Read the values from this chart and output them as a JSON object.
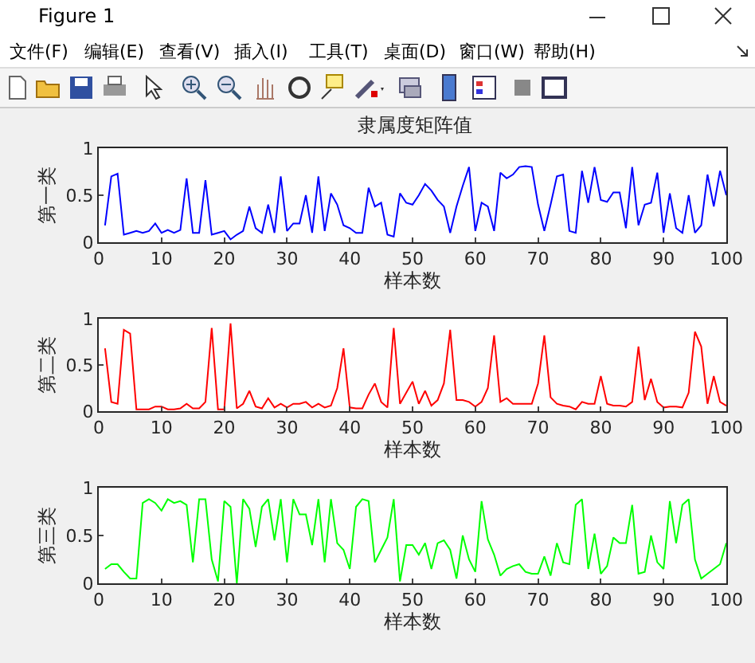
{
  "chart_data": [
    {
      "type": "line",
      "title": "隶属度矩阵值",
      "xlabel": "样本数",
      "ylabel": "第一类",
      "annotations": [
        "Figure 1",
        "文件(F)",
        "编辑(E)",
        "查看(V)",
        "插入(I)",
        "工具(T)",
        "桌面(D)",
        "窗口(W)",
        "帮助(H)"
      ],
      "x": [
        1,
        2,
        3,
        4,
        5,
        6,
        7,
        8,
        9,
        10,
        11,
        12,
        13,
        14,
        15,
        16,
        17,
        18,
        19,
        20,
        21,
        22,
        23,
        24,
        25,
        26,
        27,
        28,
        29,
        30,
        31,
        32,
        33,
        34,
        35,
        36,
        37,
        38,
        39,
        40,
        41,
        42,
        43,
        44,
        45,
        46,
        47,
        48,
        49,
        50,
        51,
        52,
        53,
        54,
        55,
        56,
        57,
        58,
        59,
        60,
        61,
        62,
        63,
        64,
        65,
        66,
        67,
        68,
        69,
        70,
        71,
        72,
        73,
        74,
        75,
        76,
        77,
        78,
        79,
        80,
        81,
        82,
        83,
        84,
        85,
        86,
        87,
        88,
        89,
        90,
        91,
        92,
        93,
        94,
        95,
        96,
        97,
        98,
        99,
        100
      ],
      "series": [
        {
          "color": "#0000ff",
          "values": [
            0.18,
            0.7,
            0.73,
            0.08,
            0.1,
            0.12,
            0.1,
            0.12,
            0.2,
            0.1,
            0.13,
            0.1,
            0.13,
            0.68,
            0.1,
            0.1,
            0.66,
            0.08,
            0.1,
            0.12,
            0.03,
            0.08,
            0.12,
            0.38,
            0.15,
            0.1,
            0.4,
            0.1,
            0.7,
            0.12,
            0.2,
            0.2,
            0.5,
            0.1,
            0.7,
            0.12,
            0.52,
            0.4,
            0.18,
            0.15,
            0.1,
            0.1,
            0.58,
            0.38,
            0.42,
            0.08,
            0.06,
            0.52,
            0.42,
            0.4,
            0.5,
            0.62,
            0.55,
            0.45,
            0.38,
            0.1,
            0.38,
            0.6,
            0.8,
            0.12,
            0.42,
            0.38,
            0.12,
            0.74,
            0.68,
            0.72,
            0.8,
            0.81,
            0.8,
            0.4,
            0.12,
            0.4,
            0.7,
            0.72,
            0.12,
            0.1,
            0.76,
            0.42,
            0.8,
            0.45,
            0.43,
            0.53,
            0.53,
            0.15,
            0.8,
            0.18,
            0.4,
            0.42,
            0.74,
            0.1,
            0.52,
            0.15,
            0.1,
            0.5,
            0.1,
            0.18,
            0.72,
            0.38,
            0.76,
            0.5
          ]
        }
      ],
      "xlim": [
        0,
        100
      ],
      "xticks": [
        0,
        10,
        20,
        30,
        40,
        50,
        60,
        70,
        80,
        90,
        100
      ],
      "ylim": [
        0,
        1
      ],
      "yticks": [
        0,
        0.5,
        1
      ],
      "grid": false
    },
    {
      "type": "line",
      "xlabel": "样本数",
      "ylabel": "第二类",
      "x": [
        1,
        2,
        3,
        4,
        5,
        6,
        7,
        8,
        9,
        10,
        11,
        12,
        13,
        14,
        15,
        16,
        17,
        18,
        19,
        20,
        21,
        22,
        23,
        24,
        25,
        26,
        27,
        28,
        29,
        30,
        31,
        32,
        33,
        34,
        35,
        36,
        37,
        38,
        39,
        40,
        41,
        42,
        43,
        44,
        45,
        46,
        47,
        48,
        49,
        50,
        51,
        52,
        53,
        54,
        55,
        56,
        57,
        58,
        59,
        60,
        61,
        62,
        63,
        64,
        65,
        66,
        67,
        68,
        69,
        70,
        71,
        72,
        73,
        74,
        75,
        76,
        77,
        78,
        79,
        80,
        81,
        82,
        83,
        84,
        85,
        86,
        87,
        88,
        89,
        90,
        91,
        92,
        93,
        94,
        95,
        96,
        97,
        98,
        99,
        100
      ],
      "series": [
        {
          "color": "#ff0000",
          "values": [
            0.68,
            0.1,
            0.08,
            0.88,
            0.84,
            0.02,
            0.02,
            0.02,
            0.05,
            0.05,
            0.02,
            0.02,
            0.03,
            0.08,
            0.03,
            0.03,
            0.1,
            0.9,
            0.02,
            0.02,
            0.95,
            0.03,
            0.08,
            0.22,
            0.05,
            0.03,
            0.14,
            0.04,
            0.08,
            0.04,
            0.08,
            0.08,
            0.1,
            0.04,
            0.08,
            0.04,
            0.06,
            0.25,
            0.68,
            0.04,
            0.03,
            0.03,
            0.18,
            0.3,
            0.1,
            0.04,
            0.9,
            0.08,
            0.2,
            0.32,
            0.08,
            0.22,
            0.06,
            0.12,
            0.3,
            0.88,
            0.12,
            0.12,
            0.1,
            0.05,
            0.1,
            0.25,
            0.82,
            0.1,
            0.14,
            0.08,
            0.08,
            0.08,
            0.08,
            0.3,
            0.82,
            0.15,
            0.08,
            0.06,
            0.05,
            0.02,
            0.1,
            0.08,
            0.08,
            0.38,
            0.08,
            0.06,
            0.06,
            0.05,
            0.1,
            0.7,
            0.12,
            0.35,
            0.1,
            0.04,
            0.05,
            0.05,
            0.04,
            0.2,
            0.86,
            0.7,
            0.08,
            0.38,
            0.1,
            0.06
          ]
        }
      ],
      "xlim": [
        0,
        100
      ],
      "xticks": [
        0,
        10,
        20,
        30,
        40,
        50,
        60,
        70,
        80,
        90,
        100
      ],
      "ylim": [
        0,
        1
      ],
      "yticks": [
        0,
        0.5,
        1
      ],
      "grid": false
    },
    {
      "type": "line",
      "xlabel": "样本数",
      "ylabel": "第三类",
      "x": [
        1,
        2,
        3,
        4,
        5,
        6,
        7,
        8,
        9,
        10,
        11,
        12,
        13,
        14,
        15,
        16,
        17,
        18,
        19,
        20,
        21,
        22,
        23,
        24,
        25,
        26,
        27,
        28,
        29,
        30,
        31,
        32,
        33,
        34,
        35,
        36,
        37,
        38,
        39,
        40,
        41,
        42,
        43,
        44,
        45,
        46,
        47,
        48,
        49,
        50,
        51,
        52,
        53,
        54,
        55,
        56,
        57,
        58,
        59,
        60,
        61,
        62,
        63,
        64,
        65,
        66,
        67,
        68,
        69,
        70,
        71,
        72,
        73,
        74,
        75,
        76,
        77,
        78,
        79,
        80,
        81,
        82,
        83,
        84,
        85,
        86,
        87,
        88,
        89,
        90,
        91,
        92,
        93,
        94,
        95,
        96,
        97,
        98,
        99,
        100
      ],
      "series": [
        {
          "color": "#00ff00",
          "values": [
            0.15,
            0.2,
            0.2,
            0.12,
            0.05,
            0.05,
            0.84,
            0.88,
            0.84,
            0.76,
            0.88,
            0.84,
            0.86,
            0.82,
            0.22,
            0.88,
            0.88,
            0.25,
            0.02,
            0.86,
            0.8,
            0.0,
            0.88,
            0.78,
            0.38,
            0.8,
            0.88,
            0.45,
            0.88,
            0.22,
            0.88,
            0.72,
            0.72,
            0.4,
            0.88,
            0.22,
            0.88,
            0.42,
            0.35,
            0.15,
            0.8,
            0.88,
            0.86,
            0.22,
            0.35,
            0.48,
            0.88,
            0.02,
            0.4,
            0.4,
            0.3,
            0.42,
            0.15,
            0.42,
            0.45,
            0.35,
            0.05,
            0.5,
            0.25,
            0.12,
            0.86,
            0.46,
            0.3,
            0.08,
            0.15,
            0.18,
            0.2,
            0.12,
            0.1,
            0.1,
            0.28,
            0.08,
            0.42,
            0.22,
            0.2,
            0.82,
            0.88,
            0.15,
            0.52,
            0.1,
            0.18,
            0.48,
            0.42,
            0.42,
            0.82,
            0.1,
            0.12,
            0.5,
            0.22,
            0.15,
            0.86,
            0.42,
            0.82,
            0.88,
            0.25,
            0.05,
            0.1,
            0.15,
            0.2,
            0.42
          ]
        }
      ],
      "xlim": [
        0,
        100
      ],
      "xticks": [
        0,
        10,
        20,
        30,
        40,
        50,
        60,
        70,
        80,
        90,
        100
      ],
      "ylim": [
        0,
        1
      ],
      "yticks": [
        0,
        0.5,
        1
      ],
      "grid": false
    }
  ]
}
